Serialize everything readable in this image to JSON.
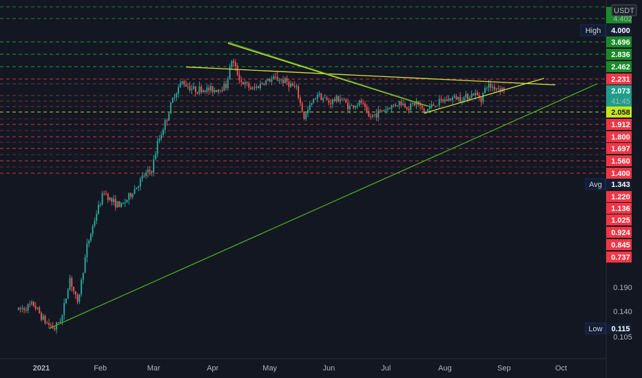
{
  "currency_label": "USDT",
  "colors": {
    "background": "#131722",
    "up": "#26a69a",
    "down": "#ef5350",
    "green_tag": "#1b8a2a",
    "red_tag": "#f23645",
    "blue_tag": "#131d33",
    "yellow": "#dce03a",
    "trend_green": "#4caf1e"
  },
  "chart_data": {
    "type": "candlestick",
    "y_scale": "log",
    "x_ticks": [
      {
        "label": "2021",
        "date": "2021-01-01"
      },
      {
        "label": "Feb",
        "date": "2021-02-01"
      },
      {
        "label": "Mar",
        "date": "2021-03-01"
      },
      {
        "label": "Apr",
        "date": "2021-04-01"
      },
      {
        "label": "May",
        "date": "2021-05-01"
      },
      {
        "label": "Jun",
        "date": "2021-06-01"
      },
      {
        "label": "Jul",
        "date": "2021-07-01"
      },
      {
        "label": "Aug",
        "date": "2021-08-01"
      },
      {
        "label": "Sep",
        "date": "2021-09-01"
      },
      {
        "label": "Oct",
        "date": "2021-10-01"
      }
    ],
    "y_tick_labels": [
      "4.402",
      "0.190",
      "0.140",
      "0.105"
    ],
    "price_levels": [
      {
        "value": "4.000",
        "label": "High",
        "style": "blue",
        "line": false
      },
      {
        "value": "3.696",
        "style": "green",
        "line": true
      },
      {
        "value": "2.836",
        "style": "green",
        "line": true
      },
      {
        "value": "2.462",
        "style": "green",
        "line": true
      },
      {
        "value": "2.231",
        "style": "red",
        "line": true
      },
      {
        "value": "2.073",
        "countdown": "41:45",
        "style": "teal",
        "line": false
      },
      {
        "value": "2.058",
        "style": "yellow",
        "line": true
      },
      {
        "value": "1.912",
        "style": "red",
        "line": true
      },
      {
        "value": "1.800",
        "style": "red",
        "line": true
      },
      {
        "value": "1.697",
        "style": "red",
        "line": true
      },
      {
        "value": "1.560",
        "style": "red",
        "line": true
      },
      {
        "value": "1.400",
        "style": "red",
        "line": true
      },
      {
        "value": "1.343",
        "label": "Avg",
        "style": "blue",
        "line": false
      },
      {
        "value": "1.220",
        "style": "red",
        "line": false
      },
      {
        "value": "1.136",
        "style": "red",
        "line": false
      },
      {
        "value": "1.025",
        "style": "red",
        "line": false
      },
      {
        "value": "0.924",
        "style": "red",
        "line": false
      },
      {
        "value": "0.845",
        "style": "red",
        "line": false
      },
      {
        "value": "0.737",
        "style": "red",
        "line": false
      },
      {
        "value": "0.115",
        "label": "Low",
        "style": "blue",
        "line": false
      }
    ],
    "price_path": [
      [
        "2020-12-20",
        0.15
      ],
      [
        "2020-12-28",
        0.16
      ],
      [
        "2021-01-03",
        0.13
      ],
      [
        "2021-01-08",
        0.12
      ],
      [
        "2021-01-12",
        0.14
      ],
      [
        "2021-01-16",
        0.22
      ],
      [
        "2021-01-20",
        0.16
      ],
      [
        "2021-01-25",
        0.32
      ],
      [
        "2021-01-30",
        0.48
      ],
      [
        "2021-02-03",
        0.62
      ],
      [
        "2021-02-07",
        0.55
      ],
      [
        "2021-02-12",
        0.52
      ],
      [
        "2021-02-16",
        0.58
      ],
      [
        "2021-02-21",
        0.68
      ],
      [
        "2021-02-24",
        0.75
      ],
      [
        "2021-02-28",
        0.8
      ],
      [
        "2021-03-03",
        1.1
      ],
      [
        "2021-03-08",
        1.5
      ],
      [
        "2021-03-12",
        2.0
      ],
      [
        "2021-03-16",
        2.3
      ],
      [
        "2021-03-22",
        2.1
      ],
      [
        "2021-03-28",
        2.1
      ],
      [
        "2021-04-03",
        2.1
      ],
      [
        "2021-04-08",
        2.2
      ],
      [
        "2021-04-11",
        3.0
      ],
      [
        "2021-04-16",
        2.3
      ],
      [
        "2021-04-22",
        2.1
      ],
      [
        "2021-04-28",
        2.3
      ],
      [
        "2021-05-04",
        2.4
      ],
      [
        "2021-05-10",
        2.3
      ],
      [
        "2021-05-15",
        2.1
      ],
      [
        "2021-05-19",
        1.5
      ],
      [
        "2021-05-22",
        1.7
      ],
      [
        "2021-05-26",
        2.0
      ],
      [
        "2021-06-01",
        1.8
      ],
      [
        "2021-06-07",
        1.9
      ],
      [
        "2021-06-12",
        1.7
      ],
      [
        "2021-06-18",
        1.8
      ],
      [
        "2021-06-22",
        1.5
      ],
      [
        "2021-06-27",
        1.6
      ],
      [
        "2021-07-03",
        1.7
      ],
      [
        "2021-07-08",
        1.8
      ],
      [
        "2021-07-13",
        1.7
      ],
      [
        "2021-07-17",
        1.8
      ],
      [
        "2021-07-21",
        1.6
      ],
      [
        "2021-07-26",
        1.75
      ],
      [
        "2021-08-01",
        1.85
      ],
      [
        "2021-08-06",
        1.9
      ],
      [
        "2021-08-11",
        1.9
      ],
      [
        "2021-08-16",
        2.0
      ],
      [
        "2021-08-20",
        1.9
      ],
      [
        "2021-08-23",
        2.2
      ],
      [
        "2021-08-28",
        2.15
      ],
      [
        "2021-09-01",
        2.1
      ]
    ],
    "trend_lines": [
      {
        "color": "yellow",
        "from": [
          "2021-03-18",
          2.75
        ],
        "to": [
          "2021-09-28",
          2.22
        ]
      },
      {
        "color": "yellow",
        "from": [
          "2021-04-09",
          3.65
        ],
        "to": [
          "2021-07-23",
          1.72
        ]
      },
      {
        "color": "yellow",
        "from": [
          "2021-07-21",
          1.58
        ],
        "to": [
          "2021-09-22",
          2.4
        ]
      },
      {
        "color": "green",
        "from": [
          "2021-01-05",
          0.12
        ],
        "to": [
          "2021-10-20",
          2.25
        ]
      },
      {
        "color": "green",
        "from": [
          "2021-04-09",
          3.7
        ],
        "to": [
          "2021-07-25",
          1.7
        ]
      }
    ]
  }
}
